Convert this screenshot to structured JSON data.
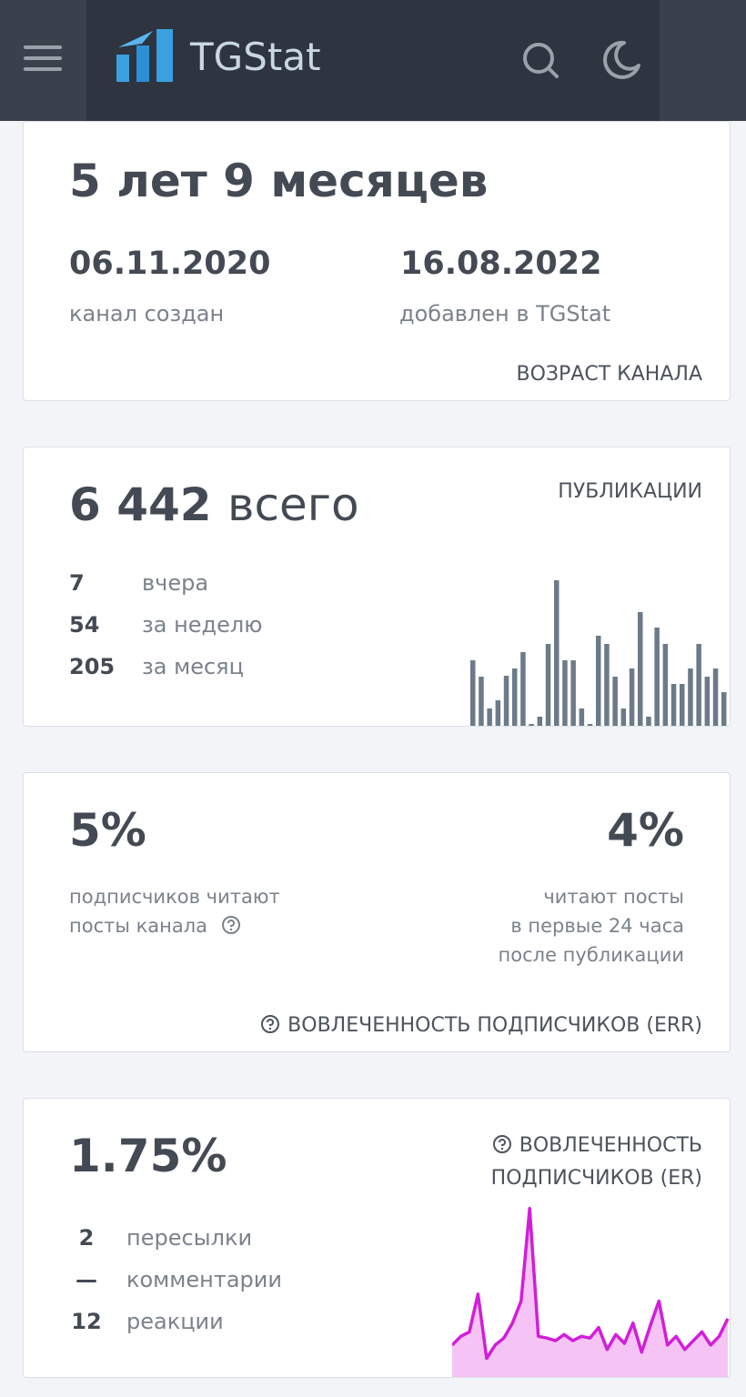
{
  "header": {
    "logo_text": "TGStat"
  },
  "age_card": {
    "title": "5 лет 9 месяцев",
    "created_date": "06.11.2020",
    "created_label": "канал создан",
    "added_date": "16.08.2022",
    "added_label": "добавлен в TGStat",
    "section_label": "ВОЗРАСТ КАНАЛА"
  },
  "posts_card": {
    "total": "6 442",
    "total_suffix": "всего",
    "section_label": "ПУБЛИКАЦИИ",
    "stats": [
      {
        "value": 7,
        "label": "вчера"
      },
      {
        "value": 54,
        "label": "за неделю"
      },
      {
        "value": 205,
        "label": "за месяц"
      }
    ],
    "chart": {
      "type": "bar",
      "color": "#6c7a89",
      "ylim": [
        0,
        160
      ],
      "values": [
        72,
        54,
        19,
        28,
        55,
        63,
        81,
        2,
        10,
        90,
        160,
        72,
        72,
        19,
        2,
        99,
        90,
        54,
        19,
        63,
        125,
        10,
        108,
        90,
        46,
        46,
        63,
        90,
        54,
        63,
        37
      ]
    }
  },
  "err_card": {
    "value_left": "5%",
    "text_left": [
      "подписчиков читают",
      "посты канала"
    ],
    "value_right": "4%",
    "text_right": [
      "читают посты",
      "в первые 24 часа",
      "после публикации"
    ],
    "section_label": "ВОВЛЕЧЕННОСТЬ ПОДПИСЧИКОВ (ERR)"
  },
  "er_card": {
    "value": "1.75%",
    "section_label": [
      "ВОВЛЕЧЕННОСТЬ",
      "ПОДПИСЧИКОВ (ER)"
    ],
    "stats": [
      {
        "value": "2",
        "label": "пересылки"
      },
      {
        "value": "—",
        "label": "комментарии"
      },
      {
        "value": "12",
        "label": "реакции"
      }
    ],
    "chart": {
      "type": "line",
      "color": "#d21ed9",
      "fill": "#f6c4f4",
      "ylim": [
        0,
        190
      ],
      "values": [
        30,
        40,
        45,
        88,
        15,
        30,
        38,
        55,
        80,
        185,
        40,
        38,
        35,
        42,
        35,
        40,
        38,
        50,
        25,
        42,
        32,
        55,
        22,
        52,
        80,
        30,
        40,
        25,
        35,
        45,
        30,
        40,
        60
      ]
    }
  }
}
